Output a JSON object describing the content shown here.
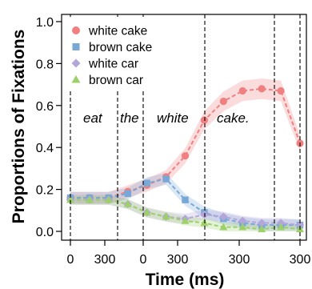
{
  "chart_data": {
    "type": "line",
    "xlabel": "Time (ms)",
    "ylabel": "Proportions of Fixations",
    "ylim": [
      0,
      1
    ],
    "yticks": [
      "0.0",
      "0.2",
      "0.4",
      "0.6",
      "0.8",
      "1.0"
    ],
    "xticks": [
      "0",
      "300",
      "0",
      "300",
      "300",
      "300"
    ],
    "words": [
      "eat",
      "the",
      "white",
      "cake."
    ],
    "legend_position": "top-left",
    "grid": false,
    "x": [
      0,
      1,
      2,
      3,
      4,
      5,
      6,
      7,
      8,
      9,
      10,
      11,
      12
    ],
    "series": [
      {
        "name": "white cake",
        "color": "#f08080",
        "marker": "circle",
        "values": [
          0.16,
          0.16,
          0.16,
          0.19,
          0.22,
          0.26,
          0.36,
          0.53,
          0.62,
          0.67,
          0.68,
          0.67,
          0.42
        ]
      },
      {
        "name": "brown cake",
        "color": "#7aa8d6",
        "marker": "square",
        "values": [
          0.16,
          0.16,
          0.16,
          0.18,
          0.23,
          0.25,
          0.15,
          0.09,
          0.06,
          0.04,
          0.03,
          0.03,
          0.03
        ]
      },
      {
        "name": "white car",
        "color": "#b3a6d9",
        "marker": "diamond",
        "values": [
          0.15,
          0.15,
          0.15,
          0.13,
          0.09,
          0.07,
          0.06,
          0.08,
          0.07,
          0.05,
          0.04,
          0.04,
          0.03
        ]
      },
      {
        "name": "brown car",
        "color": "#9ed06a",
        "marker": "triangle",
        "values": [
          0.15,
          0.15,
          0.15,
          0.13,
          0.09,
          0.07,
          0.05,
          0.04,
          0.02,
          0.02,
          0.01,
          0.02,
          0.01
        ]
      }
    ]
  }
}
